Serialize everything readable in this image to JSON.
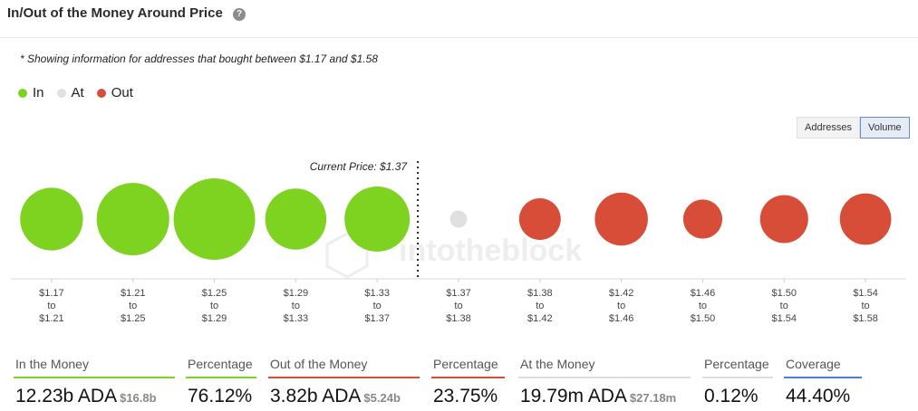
{
  "header": {
    "title": "In/Out of the Money Around Price",
    "help_icon": "?"
  },
  "note": "* Showing information for addresses that bought between $1.17 and $1.58",
  "legend": [
    {
      "label": "In",
      "color": "#7ed321"
    },
    {
      "label": "At",
      "color": "#e0e0e0"
    },
    {
      "label": "Out",
      "color": "#d84d38"
    }
  ],
  "toggle": {
    "addresses_label": "Addresses",
    "volume_label": "Volume",
    "active": "volume"
  },
  "watermark": "intotheblock",
  "chart_data": {
    "type": "bubble",
    "current_price_label": "Current Price: $1.37",
    "current_price_after_index": 4,
    "colors": {
      "in": "#7ed321",
      "at": "#e0e0e0",
      "out": "#d84d38"
    },
    "ranges": [
      {
        "from": "$1.17",
        "to": "$1.21",
        "status": "in",
        "size": 0.77
      },
      {
        "from": "$1.21",
        "to": "$1.25",
        "status": "in",
        "size": 0.89
      },
      {
        "from": "$1.25",
        "to": "$1.29",
        "status": "in",
        "size": 1.0
      },
      {
        "from": "$1.29",
        "to": "$1.33",
        "status": "in",
        "size": 0.75
      },
      {
        "from": "$1.33",
        "to": "$1.37",
        "status": "in",
        "size": 0.8
      },
      {
        "from": "$1.37",
        "to": "$1.38",
        "status": "at",
        "size": 0.21
      },
      {
        "from": "$1.38",
        "to": "$1.42",
        "status": "out",
        "size": 0.51
      },
      {
        "from": "$1.42",
        "to": "$1.46",
        "status": "out",
        "size": 0.65
      },
      {
        "from": "$1.46",
        "to": "$1.50",
        "status": "out",
        "size": 0.48
      },
      {
        "from": "$1.50",
        "to": "$1.54",
        "status": "out",
        "size": 0.59
      },
      {
        "from": "$1.54",
        "to": "$1.58",
        "status": "out",
        "size": 0.63
      }
    ],
    "tick_connector": "to"
  },
  "metrics": [
    {
      "label": "In the Money",
      "value": "12.23b ADA",
      "sub": "$16.8b",
      "color": "#7ed321"
    },
    {
      "label": "Percentage",
      "value": "76.12%",
      "sub": "",
      "color": "#7ed321"
    },
    {
      "label": "Out of the Money",
      "value": "3.82b ADA",
      "sub": "$5.24b",
      "color": "#d84d38"
    },
    {
      "label": "Percentage",
      "value": "23.75%",
      "sub": "",
      "color": "#d84d38"
    },
    {
      "label": "At the Money",
      "value": "19.79m ADA",
      "sub": "$27.18m",
      "color": "#dddddd"
    },
    {
      "label": "Percentage",
      "value": "0.12%",
      "sub": "",
      "color": "#dddddd"
    },
    {
      "label": "Coverage",
      "value": "44.40%",
      "sub": "",
      "color": "#4a7fd6"
    }
  ]
}
